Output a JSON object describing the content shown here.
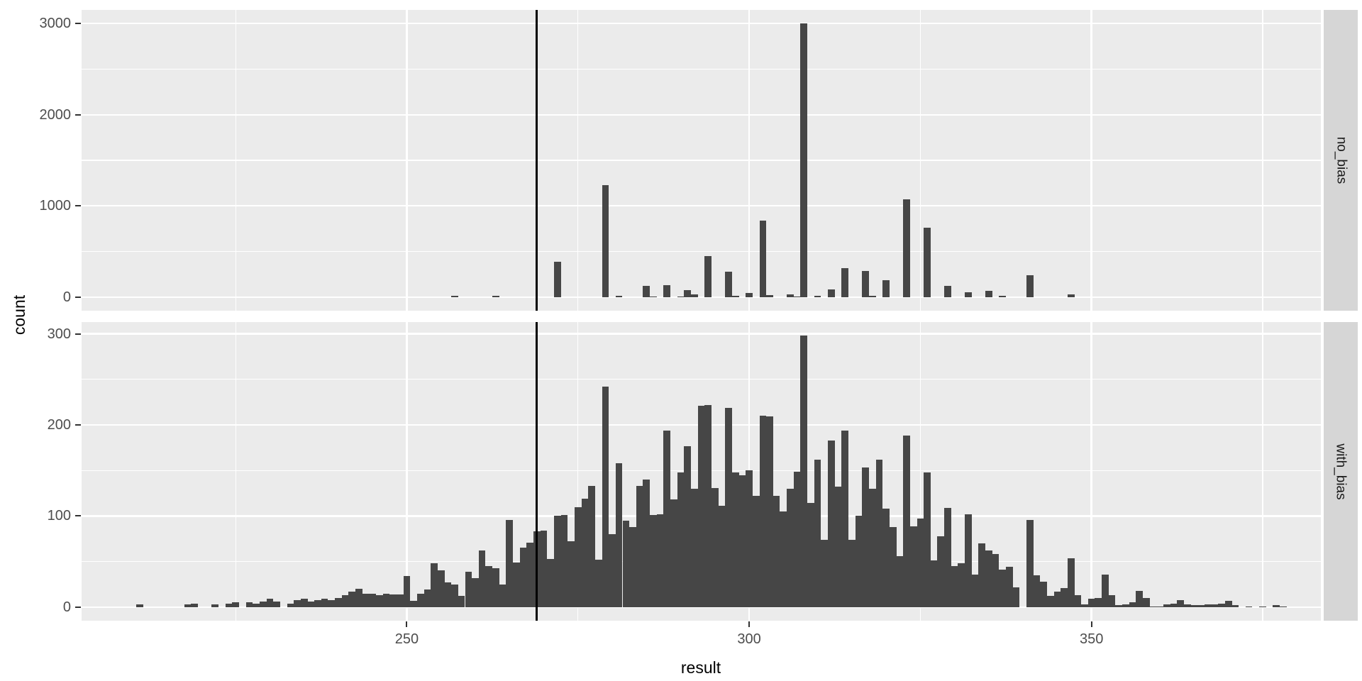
{
  "chart_data": {
    "type": "histogram",
    "title": "",
    "xlabel": "result",
    "ylabel": "count",
    "legend": "none",
    "grid": true,
    "binwidth": 1,
    "xlim": [
      202.5,
      383.5
    ],
    "x_major_ticks": [
      250,
      300,
      350
    ],
    "x_minor_ticks": [
      225,
      275,
      325,
      375
    ],
    "vline_x": 269,
    "facets": [
      {
        "label": "no_bias",
        "ylim": [
          0,
          3000
        ],
        "y_major_ticks": [
          0,
          1000,
          2000,
          3000
        ],
        "y_minor_ticks": [
          500,
          1500,
          2500
        ],
        "bars": [
          [
            257,
            12
          ],
          [
            263,
            14
          ],
          [
            272,
            390
          ],
          [
            279,
            1230
          ],
          [
            281,
            15
          ],
          [
            285,
            120
          ],
          [
            286,
            8
          ],
          [
            288,
            130
          ],
          [
            290,
            5
          ],
          [
            291,
            75
          ],
          [
            292,
            28
          ],
          [
            294,
            450
          ],
          [
            297,
            275
          ],
          [
            298,
            10
          ],
          [
            300,
            48
          ],
          [
            302,
            840
          ],
          [
            303,
            20
          ],
          [
            306,
            30
          ],
          [
            307,
            8
          ],
          [
            308,
            3000
          ],
          [
            310,
            10
          ],
          [
            312,
            80
          ],
          [
            314,
            320
          ],
          [
            317,
            285
          ],
          [
            318,
            15
          ],
          [
            320,
            187
          ],
          [
            323,
            1070
          ],
          [
            326,
            757
          ],
          [
            329,
            120
          ],
          [
            332,
            50
          ],
          [
            335,
            70
          ],
          [
            337,
            10
          ],
          [
            341,
            240
          ],
          [
            347,
            28
          ]
        ]
      },
      {
        "label": "with_bias",
        "ylim": [
          0,
          298
        ],
        "y_major_ticks": [
          0,
          100,
          200,
          300
        ],
        "y_minor_ticks": [
          50,
          150,
          250
        ],
        "bars": [
          [
            211,
            3
          ],
          [
            218,
            3
          ],
          [
            219,
            4
          ],
          [
            222,
            3
          ],
          [
            224,
            4
          ],
          [
            225,
            5
          ],
          [
            227,
            5
          ],
          [
            228,
            4
          ],
          [
            229,
            6
          ],
          [
            230,
            9
          ],
          [
            231,
            6
          ],
          [
            233,
            4
          ],
          [
            234,
            8
          ],
          [
            235,
            9
          ],
          [
            236,
            6
          ],
          [
            237,
            8
          ],
          [
            238,
            9
          ],
          [
            239,
            8
          ],
          [
            240,
            10
          ],
          [
            241,
            13
          ],
          [
            242,
            17
          ],
          [
            243,
            20
          ],
          [
            244,
            15
          ],
          [
            245,
            15
          ],
          [
            246,
            13
          ],
          [
            247,
            15
          ],
          [
            248,
            14
          ],
          [
            249,
            14
          ],
          [
            250,
            34
          ],
          [
            251,
            7
          ],
          [
            252,
            15
          ],
          [
            253,
            19
          ],
          [
            254,
            48
          ],
          [
            255,
            40
          ],
          [
            256,
            27
          ],
          [
            257,
            25
          ],
          [
            258,
            12
          ],
          [
            259,
            39
          ],
          [
            260,
            32
          ],
          [
            261,
            62
          ],
          [
            262,
            45
          ],
          [
            263,
            43
          ],
          [
            264,
            25
          ],
          [
            265,
            96
          ],
          [
            266,
            49
          ],
          [
            267,
            65
          ],
          [
            268,
            71
          ],
          [
            269,
            83
          ],
          [
            270,
            84
          ],
          [
            271,
            53
          ],
          [
            272,
            100
          ],
          [
            273,
            101
          ],
          [
            274,
            72
          ],
          [
            275,
            110
          ],
          [
            276,
            119
          ],
          [
            277,
            133
          ],
          [
            278,
            52
          ],
          [
            279,
            242
          ],
          [
            280,
            80
          ],
          [
            281,
            158
          ],
          [
            282,
            95
          ],
          [
            283,
            88
          ],
          [
            284,
            133
          ],
          [
            285,
            140
          ],
          [
            286,
            101
          ],
          [
            287,
            102
          ],
          [
            288,
            194
          ],
          [
            289,
            118
          ],
          [
            290,
            148
          ],
          [
            291,
            177
          ],
          [
            292,
            130
          ],
          [
            293,
            221
          ],
          [
            294,
            222
          ],
          [
            295,
            131
          ],
          [
            296,
            111
          ],
          [
            297,
            219
          ],
          [
            298,
            148
          ],
          [
            299,
            145
          ],
          [
            300,
            150
          ],
          [
            301,
            122
          ],
          [
            302,
            210
          ],
          [
            303,
            209
          ],
          [
            304,
            122
          ],
          [
            305,
            105
          ],
          [
            306,
            130
          ],
          [
            307,
            149
          ],
          [
            308,
            298
          ],
          [
            309,
            114
          ],
          [
            310,
            162
          ],
          [
            311,
            74
          ],
          [
            312,
            183
          ],
          [
            313,
            132
          ],
          [
            314,
            194
          ],
          [
            315,
            74
          ],
          [
            316,
            100
          ],
          [
            317,
            153
          ],
          [
            318,
            130
          ],
          [
            319,
            162
          ],
          [
            320,
            108
          ],
          [
            321,
            88
          ],
          [
            322,
            56
          ],
          [
            323,
            188
          ],
          [
            324,
            89
          ],
          [
            325,
            97
          ],
          [
            326,
            148
          ],
          [
            327,
            51
          ],
          [
            328,
            78
          ],
          [
            329,
            109
          ],
          [
            330,
            45
          ],
          [
            331,
            48
          ],
          [
            332,
            102
          ],
          [
            333,
            36
          ],
          [
            334,
            70
          ],
          [
            335,
            62
          ],
          [
            336,
            58
          ],
          [
            337,
            41
          ],
          [
            338,
            44
          ],
          [
            339,
            22
          ],
          [
            341,
            96
          ],
          [
            342,
            35
          ],
          [
            343,
            28
          ],
          [
            344,
            12
          ],
          [
            345,
            17
          ],
          [
            346,
            21
          ],
          [
            347,
            54
          ],
          [
            348,
            13
          ],
          [
            349,
            3
          ],
          [
            350,
            9
          ],
          [
            351,
            10
          ],
          [
            352,
            36
          ],
          [
            353,
            13
          ],
          [
            354,
            2
          ],
          [
            355,
            3
          ],
          [
            356,
            5
          ],
          [
            357,
            18
          ],
          [
            358,
            10
          ],
          [
            359,
            1
          ],
          [
            360,
            1
          ],
          [
            361,
            3
          ],
          [
            362,
            4
          ],
          [
            363,
            8
          ],
          [
            364,
            3
          ],
          [
            365,
            2
          ],
          [
            366,
            2
          ],
          [
            367,
            3
          ],
          [
            368,
            3
          ],
          [
            369,
            4
          ],
          [
            370,
            7
          ],
          [
            371,
            2
          ],
          [
            373,
            1
          ],
          [
            375,
            1
          ],
          [
            377,
            2
          ],
          [
            378,
            1
          ]
        ]
      }
    ]
  },
  "style": {
    "page_bg": "#FFFFFF",
    "panel_bg": "#EBEBEB",
    "grid_color": "#FFFFFF",
    "bar_color": "#464646",
    "strip_bg": "#D6D6D6",
    "strip_text_color": "#1A1A1A",
    "tick_label_color": "#4D4D4D",
    "axis_title_color": "#000000",
    "tick_mark_color": "#333333",
    "vline_color": "#000000"
  }
}
